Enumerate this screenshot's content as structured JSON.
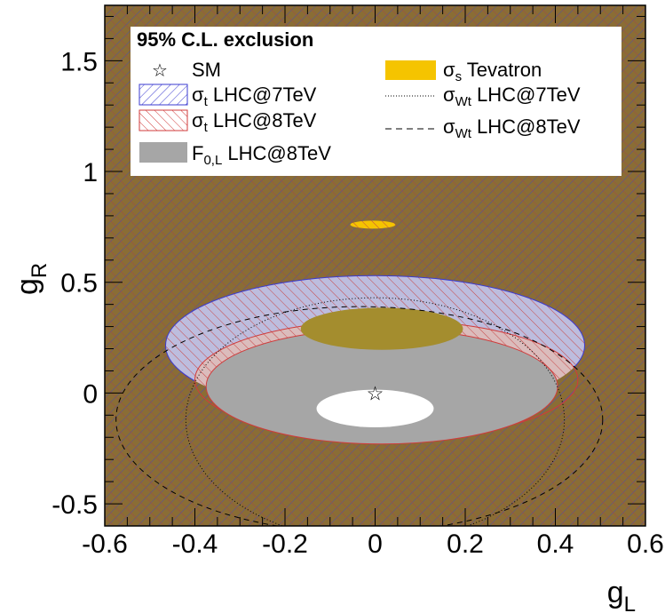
{
  "chart_data": {
    "type": "contour",
    "xlabel": "g_L",
    "ylabel": "g_R",
    "xlabel_parts": {
      "main": "g",
      "sub": "L"
    },
    "ylabel_parts": {
      "main": "g",
      "sub": "R"
    },
    "xlim": [
      -0.6,
      0.6
    ],
    "ylim": [
      -0.6,
      1.75
    ],
    "x_ticks": [
      -0.6,
      -0.4,
      -0.2,
      0,
      0.2,
      0.4,
      0.6
    ],
    "x_tick_labels": [
      "-0.6",
      "-0.4",
      "-0.2",
      "0",
      "0.2",
      "0.4",
      "0.6"
    ],
    "y_ticks": [
      -0.5,
      0,
      0.5,
      1,
      1.5
    ],
    "y_tick_labels": [
      "-0.5",
      "0",
      "0.5",
      "1",
      "1.5"
    ],
    "grid": false,
    "legend_placement": "top",
    "legend": {
      "title": "95% C.L. exclusion",
      "entries": [
        {
          "key": "sm",
          "symbol": "σ",
          "text": "SM",
          "sub": "",
          "suffix": ""
        },
        {
          "key": "tevatron",
          "symbol": "σ",
          "text": "σ",
          "sub": "s",
          "suffix": " Tevatron"
        },
        {
          "key": "lhc7",
          "symbol": "σ",
          "text": "σ",
          "sub": "t",
          "suffix": " LHC@7TeV"
        },
        {
          "key": "wt7",
          "symbol": "σ",
          "text": "σ",
          "sub": "Wt",
          "suffix": " LHC@7TeV"
        },
        {
          "key": "lhc8",
          "symbol": "σ",
          "text": "σ",
          "sub": "t",
          "suffix": " LHC@8TeV"
        },
        {
          "key": "wt8",
          "symbol": "σ",
          "text": "σ",
          "sub": "Wt",
          "suffix": " LHC@8TeV"
        },
        {
          "key": "f0l",
          "symbol": "F",
          "text": "F",
          "sub": "0,L",
          "suffix": " LHC@8TeV"
        }
      ]
    },
    "sm_point": {
      "x": 0,
      "y": 0
    },
    "series": [
      {
        "name": "σt LHC@7TeV",
        "style": "hatch-blue",
        "allowed_region": {
          "cx": 0,
          "cy": 0.215,
          "rx": 0.465,
          "ry": 0.315
        }
      },
      {
        "name": "σt LHC@8TeV",
        "style": "hatch-red",
        "allowed_region": {
          "cx": 0.025,
          "cy": 0.06,
          "rx": 0.425,
          "ry": 0.27
        }
      },
      {
        "name": "F0,L LHC@8TeV",
        "style": "gray",
        "allowed_region": {
          "cx": 0.015,
          "cy": 0.03,
          "rx": 0.39,
          "ry": 0.26
        }
      },
      {
        "name": "σs Tevatron",
        "style": "gold",
        "excluded_regions": [
          {
            "cx": 0.015,
            "cy": 0.29,
            "rx": 0.18,
            "ry": 0.095
          },
          {
            "cx": -0.005,
            "cy": 0.76,
            "rx": 0.05,
            "ry": 0.018
          }
        ]
      },
      {
        "name": "σWt LHC@7TeV",
        "style": "dotted",
        "contour": {
          "cx": 0.0,
          "cy": -0.12,
          "rx": 0.42,
          "ry": 0.55
        }
      },
      {
        "name": "σWt LHC@8TeV",
        "style": "dashed",
        "contour": {
          "cx": -0.035,
          "cy": -0.12,
          "rx": 0.54,
          "ry": 0.51
        }
      }
    ],
    "allowed_white_region": {
      "cx": 0.0,
      "cy": -0.07,
      "rx": 0.13,
      "ry": 0.085
    }
  },
  "colors": {
    "background_olive": "#8a6d35",
    "hatch_blue": "#3b3bd0",
    "hatch_red": "#d03b3b",
    "gray_fill": "#a6a6a6",
    "gold": "#f5c400",
    "blue_region_fill": "#bdbdde",
    "red_region_fill": "#dbbcbc"
  }
}
